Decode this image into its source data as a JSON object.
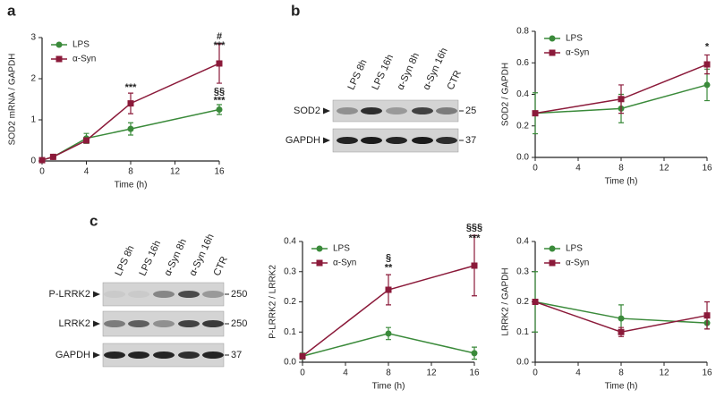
{
  "panel_labels": [
    "a",
    "b",
    "c"
  ],
  "blots": [
    {
      "lanes": [
        "LPS 8h",
        "LPS 16h",
        "α-Syn 8h",
        "α-Syn 16h",
        "CTR"
      ],
      "rows": [
        {
          "label": "SOD2",
          "marker": "25"
        },
        {
          "label": "GAPDH",
          "marker": "37"
        }
      ]
    },
    {
      "lanes": [
        "LPS 8h",
        "LPS 16h",
        "α-Syn 8h",
        "α-Syn 16h",
        "CTR"
      ],
      "rows": [
        {
          "label": "P-LRRK2",
          "marker": "250"
        },
        {
          "label": "LRRK2",
          "marker": "250"
        },
        {
          "label": "GAPDH",
          "marker": "37"
        }
      ]
    }
  ],
  "chart_data": [
    {
      "type": "line",
      "ylabel": "SOD2 mRNA / GAPDH",
      "xlabel": "Time (h)",
      "x": [
        0,
        1,
        4,
        8,
        16
      ],
      "xlim": [
        0,
        16
      ],
      "xticks": [
        0,
        4,
        8,
        12,
        16
      ],
      "ylim": [
        0,
        3
      ],
      "yticks": [
        0,
        1,
        2,
        3
      ],
      "legend": "upper left",
      "series": [
        {
          "name": "LPS",
          "color": "#3a8a3a",
          "marker": "circle",
          "values": [
            0.02,
            0.1,
            0.55,
            0.78,
            1.25
          ],
          "errors": [
            0,
            0.05,
            0.12,
            0.15,
            0.12
          ]
        },
        {
          "name": "α-Syn",
          "color": "#8b1a3a",
          "marker": "square",
          "values": [
            0.02,
            0.1,
            0.5,
            1.4,
            2.37
          ],
          "errors": [
            0.02,
            0.03,
            0.05,
            0.25,
            0.48
          ]
        }
      ],
      "annotations": [
        "***",
        "#",
        "***",
        "§§",
        "***"
      ]
    },
    {
      "type": "line",
      "ylabel": "SOD2 / GAPDH",
      "xlabel": "Time (h)",
      "x": [
        0,
        8,
        16
      ],
      "xlim": [
        0,
        16
      ],
      "xticks": [
        0,
        4,
        8,
        12,
        16
      ],
      "ylim": [
        0,
        0.8
      ],
      "yticks": [
        {
          "value": 0,
          "label": "0.0"
        },
        0.2,
        0.4,
        0.6,
        0.8
      ],
      "legend": "upper left",
      "series": [
        {
          "name": "LPS",
          "color": "#3a8a3a",
          "marker": "circle",
          "values": [
            0.28,
            0.31,
            0.46
          ],
          "errors": [
            0.13,
            0.09,
            0.1
          ]
        },
        {
          "name": "α-Syn",
          "color": "#8b1a3a",
          "marker": "square",
          "values": [
            0.28,
            0.37,
            0.59
          ],
          "errors": [
            0,
            0.09,
            0.06
          ]
        }
      ],
      "annotations": [
        "*"
      ]
    },
    {
      "type": "line",
      "ylabel": "P-LRRK2 / LRRK2",
      "xlabel": "Time (h)",
      "x": [
        0,
        8,
        16
      ],
      "xlim": [
        0,
        16
      ],
      "xticks": [
        0,
        4,
        8,
        12,
        16
      ],
      "ylim": [
        0,
        0.4
      ],
      "yticks": [
        {
          "value": 0,
          "label": "0.0"
        },
        0.1,
        0.2,
        0.3,
        0.4
      ],
      "legend": "upper left",
      "series": [
        {
          "name": "LPS",
          "color": "#3a8a3a",
          "marker": "circle",
          "values": [
            0.02,
            0.095,
            0.03
          ],
          "errors": [
            0.01,
            0.02,
            0.02
          ]
        },
        {
          "name": "α-Syn",
          "color": "#8b1a3a",
          "marker": "square",
          "values": [
            0.02,
            0.24,
            0.32
          ],
          "errors": [
            0,
            0.05,
            0.1
          ]
        }
      ],
      "annotations": [
        "§",
        "**",
        "§§§",
        "***"
      ]
    },
    {
      "type": "line",
      "ylabel": "LRRK2 / GAPDH",
      "xlabel": "Time (h)",
      "x": [
        0,
        8,
        16
      ],
      "xlim": [
        0,
        16
      ],
      "xticks": [
        0,
        4,
        8,
        12,
        16
      ],
      "ylim": [
        0,
        0.4
      ],
      "yticks": [
        {
          "value": 0,
          "label": "0.0"
        },
        0.1,
        0.2,
        0.3,
        0.4
      ],
      "legend": "upper left",
      "series": [
        {
          "name": "LPS",
          "color": "#3a8a3a",
          "marker": "circle",
          "values": [
            0.2,
            0.145,
            0.13
          ],
          "errors": [
            0.1,
            0.045,
            0.02
          ]
        },
        {
          "name": "α-Syn",
          "color": "#8b1a3a",
          "marker": "square",
          "values": [
            0.2,
            0.1,
            0.155
          ],
          "errors": [
            0,
            0.015,
            0.045
          ]
        }
      ],
      "annotations": []
    }
  ]
}
